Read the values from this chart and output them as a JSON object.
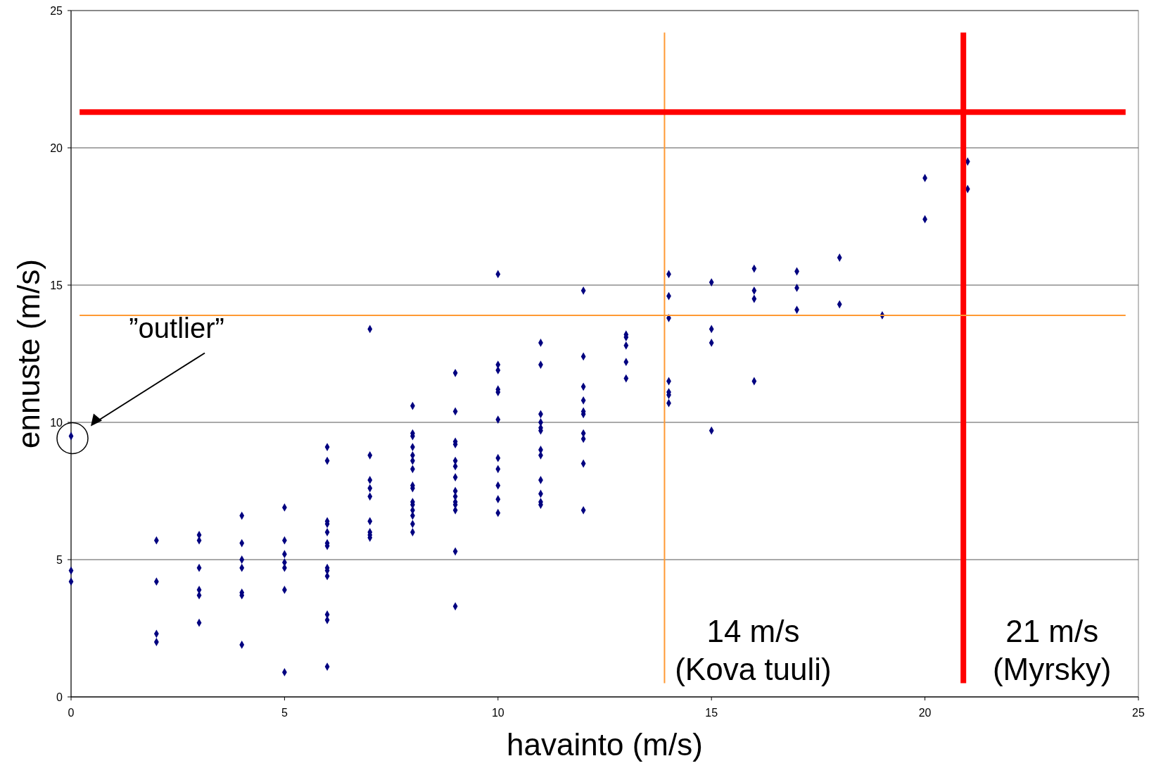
{
  "chart_data": {
    "type": "scatter",
    "xlabel": "havainto (m/s)",
    "ylabel": "ennuste (m/s)",
    "xlim": [
      0,
      25
    ],
    "ylim": [
      0,
      25
    ],
    "xticks": [
      0,
      5,
      10,
      15,
      20,
      25
    ],
    "yticks": [
      0,
      5,
      10,
      15,
      20,
      25
    ],
    "grid": "y",
    "marker": "diamond",
    "series": [
      {
        "color": "#000080",
        "x": [
          0,
          0,
          0,
          2,
          2,
          2,
          2,
          3,
          3,
          3,
          3,
          3,
          3,
          4,
          4,
          4,
          4,
          4,
          4,
          4,
          5,
          5,
          5,
          5,
          5,
          5,
          5,
          6,
          6,
          6,
          6,
          6,
          6,
          6,
          6,
          6,
          6,
          6,
          6,
          6,
          7,
          7,
          7,
          7,
          7,
          7,
          7,
          7,
          7,
          8,
          8,
          8,
          8,
          8,
          8,
          8,
          8,
          8,
          8,
          8,
          8,
          8,
          8,
          8,
          9,
          9,
          9,
          9,
          9,
          9,
          9,
          9,
          9,
          9,
          9,
          9,
          9,
          9,
          10,
          10,
          10,
          10,
          10,
          10,
          10,
          10,
          10,
          10,
          10,
          11,
          11,
          11,
          11,
          11,
          11,
          11,
          11,
          11,
          11,
          11,
          11,
          12,
          12,
          12,
          12,
          12,
          12,
          12,
          12,
          12,
          12,
          13,
          13,
          13,
          13,
          13,
          14,
          14,
          14,
          14,
          14,
          14,
          14,
          15,
          15,
          15,
          15,
          16,
          16,
          16,
          16,
          17,
          17,
          17,
          18,
          18,
          19,
          20,
          20,
          21,
          21
        ],
        "values": [
          9.5,
          4.6,
          4.2,
          5.7,
          4.2,
          2.3,
          2.0,
          5.9,
          5.7,
          4.7,
          3.9,
          3.7,
          2.7,
          6.6,
          5.6,
          5.0,
          4.7,
          3.8,
          3.7,
          1.9,
          6.9,
          5.7,
          5.2,
          4.9,
          4.7,
          3.9,
          0.9,
          9.1,
          8.6,
          6.4,
          6.3,
          6.0,
          5.6,
          5.5,
          4.7,
          4.6,
          4.4,
          3.0,
          2.8,
          1.1,
          13.4,
          8.8,
          7.9,
          7.6,
          7.3,
          6.4,
          6.0,
          5.9,
          5.8,
          10.6,
          9.6,
          9.5,
          9.1,
          8.8,
          8.6,
          8.3,
          7.7,
          7.6,
          7.1,
          7.0,
          6.8,
          6.6,
          6.3,
          6.0,
          11.8,
          10.4,
          9.3,
          9.2,
          8.6,
          8.4,
          8.0,
          7.5,
          7.3,
          7.1,
          7.0,
          6.8,
          5.3,
          3.3,
          15.4,
          12.1,
          11.9,
          11.2,
          11.1,
          10.1,
          8.7,
          8.3,
          7.7,
          7.2,
          6.7,
          12.9,
          12.1,
          10.3,
          10.0,
          9.8,
          9.7,
          9.0,
          8.8,
          7.9,
          7.4,
          7.1,
          7.0,
          14.8,
          12.4,
          11.3,
          10.8,
          10.4,
          10.3,
          9.6,
          9.4,
          8.5,
          6.8,
          13.2,
          13.1,
          12.8,
          12.2,
          11.6,
          15.4,
          14.6,
          13.8,
          11.5,
          11.1,
          11.0,
          10.7,
          15.1,
          13.4,
          12.9,
          9.7,
          15.6,
          14.8,
          14.5,
          11.5,
          15.5,
          14.9,
          14.1,
          16.0,
          14.3,
          13.9,
          18.9,
          17.4,
          19.5,
          18.5
        ]
      }
    ],
    "ref_lines": [
      {
        "axis": "x",
        "value": 13.9,
        "label": "14 m/s\n(Kova tuuli)",
        "color": "#ff9933"
      },
      {
        "axis": "x",
        "value": 20.9,
        "label": "21 m/s\n(Myrsky)",
        "color": "#ff0000"
      },
      {
        "axis": "y",
        "value": 13.9,
        "color": "#ff9933"
      },
      {
        "axis": "y",
        "value": 21.3,
        "color": "#ff0000"
      }
    ],
    "annotations": [
      "”outlier”"
    ]
  }
}
